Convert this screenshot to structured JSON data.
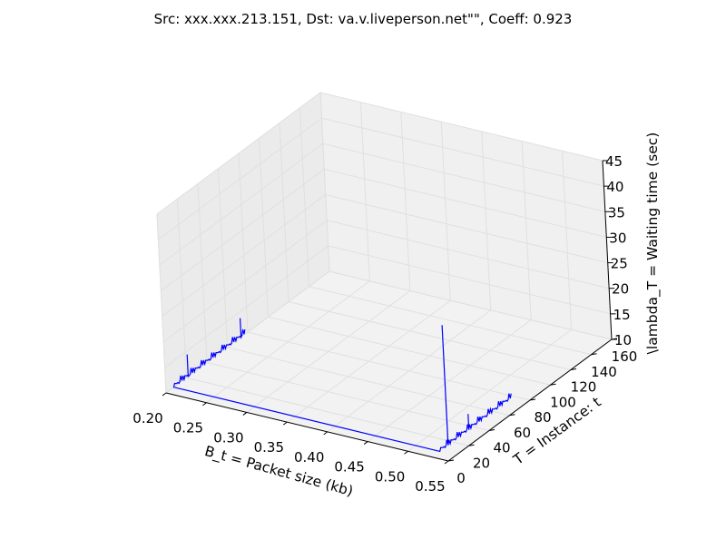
{
  "chart_data": {
    "type": "line3d",
    "title": "Src: xxx.xxx.213.151, Dst: va.v.liveperson.net\"\", Coeff: 0.923",
    "xlabel": "B_t = Packet size (kb)",
    "ylabel": "T = Instance: t",
    "zlabel": "\\lambda_T = Waiting time (sec)",
    "xlim": [
      0.2,
      0.55
    ],
    "ylim": [
      0,
      160
    ],
    "zlim": [
      10,
      45
    ],
    "x_ticks": [
      "0.20",
      "0.25",
      "0.30",
      "0.35",
      "0.40",
      "0.45",
      "0.50",
      "0.55"
    ],
    "y_ticks": [
      "0",
      "20",
      "40",
      "60",
      "80",
      "100",
      "120",
      "140",
      "160"
    ],
    "z_ticks": [
      "10",
      "15",
      "20",
      "25",
      "30",
      "35",
      "40",
      "45"
    ],
    "grid": true,
    "line_color": "#0000ff",
    "series": [
      {
        "segments": [
          {
            "x": 0.21,
            "y_start": 0,
            "y_end": 70,
            "z_base": 11.5,
            "z_amp": 1.2,
            "points": 70,
            "spikes": [
              {
                "y": 14,
                "z": 15.8
              },
              {
                "y": 66,
                "z": 15.2
              }
            ]
          },
          {
            "x": 0.54,
            "y_start": 0,
            "y_end": 70,
            "z_base": 11.5,
            "z_amp": 1.2,
            "points": 70,
            "spikes": [
              {
                "y": 8,
                "z": 35.0
              },
              {
                "y": 28,
                "z": 14.6
              }
            ]
          }
        ]
      }
    ]
  }
}
